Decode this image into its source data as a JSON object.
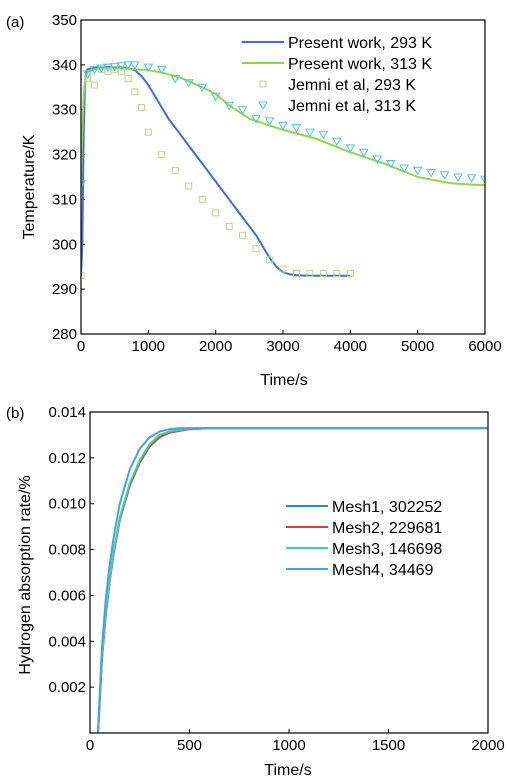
{
  "chart_data": [
    {
      "panel_label": "(a)",
      "type": "line",
      "title": "",
      "xlabel": "Time/s",
      "ylabel": "Temperature/K",
      "xlim": [
        0,
        6000
      ],
      "ylim": [
        280,
        350
      ],
      "xticks": [
        0,
        1000,
        2000,
        3000,
        4000,
        5000,
        6000
      ],
      "yticks": [
        280,
        290,
        300,
        310,
        320,
        330,
        340,
        350
      ],
      "grid": false,
      "legend_position": "top-right",
      "series": [
        {
          "name": "Present work, 293 K",
          "style": "line",
          "color": "#3d6fd6",
          "x": [
            0,
            20,
            40,
            60,
            80,
            100,
            150,
            200,
            300,
            400,
            500,
            600,
            700,
            800,
            900,
            1000,
            1100,
            1200,
            1300,
            1400,
            1500,
            1600,
            1700,
            1800,
            1900,
            2000,
            2100,
            2200,
            2300,
            2400,
            2500,
            2600,
            2700,
            2800,
            2900,
            3000,
            3100,
            3200,
            3400,
            3600,
            3800,
            4000
          ],
          "y": [
            293,
            300,
            325,
            336,
            338.5,
            339,
            339.2,
            339.3,
            339.4,
            339.5,
            339.5,
            339.4,
            339.2,
            338.8,
            337.5,
            335.5,
            333,
            330.5,
            328,
            326,
            324,
            322,
            320,
            318,
            316,
            314,
            312,
            310,
            308,
            306,
            304,
            302,
            299.5,
            297,
            295,
            293.8,
            293.3,
            293.1,
            293,
            293,
            293,
            293
          ]
        },
        {
          "name": "Present work, 313 K",
          "style": "line",
          "color": "#8ed94a",
          "x": [
            0,
            20,
            40,
            60,
            80,
            100,
            150,
            200,
            300,
            500,
            800,
            1000,
            1200,
            1500,
            1800,
            2000,
            2200,
            2500,
            3000,
            3500,
            4000,
            4500,
            5000,
            5500,
            5800,
            6000
          ],
          "y": [
            313,
            325,
            333,
            336.5,
            337.8,
            338.3,
            338.8,
            339,
            339.2,
            339.2,
            339,
            338.8,
            338.3,
            337,
            335,
            333.5,
            331,
            328,
            325.5,
            323.5,
            320.5,
            318,
            315,
            313.6,
            313.3,
            313.2
          ]
        },
        {
          "name": "Jemni et al, 293 K",
          "style": "marker",
          "marker": "square",
          "color": "#b9d98a",
          "x": [
            0,
            100,
            200,
            300,
            400,
            500,
            600,
            700,
            800,
            900,
            1000,
            1200,
            1400,
            1600,
            1800,
            2000,
            2200,
            2400,
            2600,
            2800,
            3000,
            3200,
            3400,
            3600,
            3800,
            4000
          ],
          "y": [
            293,
            337,
            335.5,
            339,
            338.5,
            339,
            338.5,
            337,
            334,
            330.5,
            325,
            320,
            316.5,
            313,
            310,
            307,
            304,
            302,
            299,
            296.5,
            294.5,
            293.5,
            293.5,
            293.5,
            293.5,
            293.5
          ]
        },
        {
          "name": "Jemni et al, 313 K",
          "style": "marker",
          "marker": "triangle-down",
          "color": "#4fc3ef",
          "x": [
            0,
            100,
            200,
            300,
            400,
            500,
            600,
            700,
            800,
            1000,
            1200,
            1400,
            1600,
            1800,
            2000,
            2200,
            2400,
            2600,
            2800,
            3000,
            3200,
            3400,
            3600,
            3800,
            4000,
            4200,
            4400,
            4600,
            4800,
            5000,
            5200,
            5400,
            5600,
            5800,
            6000
          ],
          "y": [
            313.5,
            338,
            339,
            339.3,
            339.5,
            339.6,
            339.8,
            340,
            340,
            339.5,
            339,
            337,
            336,
            335,
            333,
            331,
            330,
            328,
            327.5,
            326.5,
            326,
            325,
            324.5,
            323,
            321.5,
            320.5,
            319,
            318,
            317,
            316.5,
            316,
            315.5,
            315,
            314.8,
            314.5
          ]
        }
      ]
    },
    {
      "panel_label": "(b)",
      "type": "line",
      "title": "",
      "xlabel": "Time/s",
      "ylabel": "Hydrogen absorption rate/%",
      "xlim": [
        0,
        2000
      ],
      "ylim": [
        0,
        0.014
      ],
      "xticks": [
        0,
        500,
        1000,
        1500,
        2000
      ],
      "yticks": [
        0.002,
        0.004,
        0.006,
        0.008,
        0.01,
        0.012,
        0.014
      ],
      "ytick_labels": [
        "0.002",
        "0.004",
        "0.006",
        "0.008",
        "0.010",
        "0.012",
        "0.014"
      ],
      "grid": false,
      "legend_position": "right",
      "series": [
        {
          "name": "Mesh1,  302252",
          "color": "#1f8fcf",
          "x": [
            40,
            50,
            60,
            80,
            100,
            120,
            150,
            200,
            250,
            300,
            350,
            400,
            450,
            500,
            600,
            800,
            1000,
            1500,
            2000
          ],
          "y": [
            0,
            0.0016,
            0.0032,
            0.0052,
            0.0067,
            0.0079,
            0.0093,
            0.0108,
            0.0118,
            0.0125,
            0.0129,
            0.0131,
            0.01318,
            0.01325,
            0.0133,
            0.0133,
            0.0133,
            0.0133,
            0.0133
          ]
        },
        {
          "name": "Mesh2,  229681",
          "color": "#e0403a",
          "x": [
            40,
            50,
            60,
            80,
            100,
            120,
            150,
            200,
            250,
            300,
            350,
            400,
            450,
            500,
            600,
            800,
            1000,
            1500,
            2000
          ],
          "y": [
            0,
            0.0016,
            0.0032,
            0.0052,
            0.0067,
            0.0079,
            0.0093,
            0.0108,
            0.0118,
            0.0125,
            0.0129,
            0.0131,
            0.01318,
            0.01325,
            0.0133,
            0.0133,
            0.0133,
            0.0133,
            0.0133
          ]
        },
        {
          "name": "Mesh3,  146698",
          "color": "#33d9a4",
          "x": [
            40,
            50,
            60,
            80,
            100,
            120,
            150,
            200,
            250,
            300,
            350,
            400,
            450,
            500,
            600,
            800,
            1000,
            1500,
            2000
          ],
          "y": [
            0,
            0.0017,
            0.0033,
            0.0053,
            0.0068,
            0.008,
            0.0094,
            0.0109,
            0.0119,
            0.0126,
            0.013,
            0.01315,
            0.01322,
            0.01327,
            0.0133,
            0.0133,
            0.0133,
            0.0133,
            0.0133
          ]
        },
        {
          "name": "Mesh4,  34469",
          "color": "#4b9ee8",
          "x": [
            40,
            50,
            60,
            80,
            100,
            120,
            150,
            200,
            250,
            300,
            350,
            400,
            450,
            500,
            600,
            800,
            1000,
            1500,
            2000
          ],
          "y": [
            0,
            0.0019,
            0.0037,
            0.0059,
            0.0074,
            0.0086,
            0.01,
            0.0115,
            0.0124,
            0.0129,
            0.01315,
            0.01325,
            0.01329,
            0.0133,
            0.0133,
            0.0133,
            0.0133,
            0.0133,
            0.0133
          ]
        }
      ]
    }
  ]
}
